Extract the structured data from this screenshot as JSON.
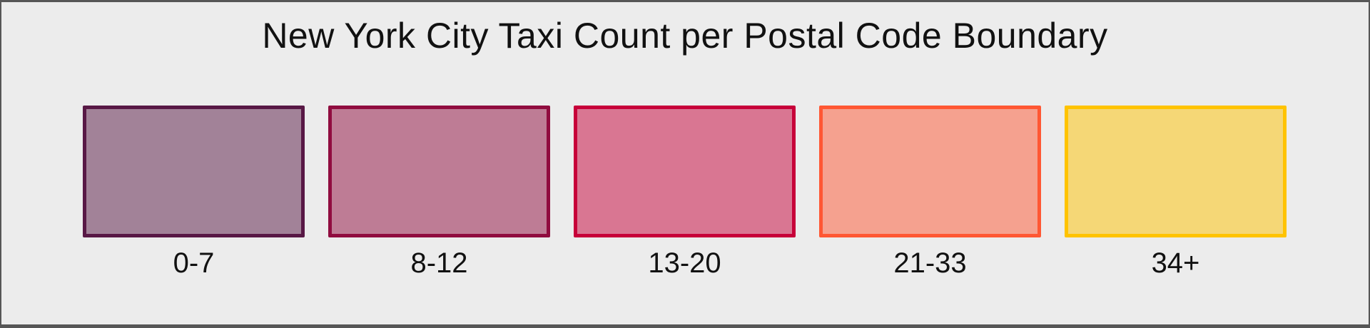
{
  "title": "New York City Taxi Count per Postal Code Boundary",
  "colors": {
    "canvas_background": "#ececec",
    "frame_border": "#565656",
    "text": "#111111"
  },
  "legend": {
    "items": [
      {
        "label": "0-7",
        "border": "#581845",
        "fill": "#a28298"
      },
      {
        "label": "8-12",
        "border": "#900C3F",
        "fill": "#be7c95"
      },
      {
        "label": "13-20",
        "border": "#C70039",
        "fill": "#d97692"
      },
      {
        "label": "21-33",
        "border": "#FF5733",
        "fill": "#f5a18f"
      },
      {
        "label": "34+",
        "border": "#FFC300",
        "fill": "#f5d776"
      }
    ]
  },
  "chart_data": {
    "type": "table",
    "title": "New York City Taxi Count per Postal Code Boundary",
    "categories": [
      "0-7",
      "8-12",
      "13-20",
      "21-33",
      "34+"
    ],
    "series": [
      {
        "name": "bin_border_colors",
        "values": [
          "#581845",
          "#900C3F",
          "#C70039",
          "#FF5733",
          "#FFC300"
        ]
      },
      {
        "name": "bin_fill_colors",
        "values": [
          "#a28298",
          "#be7c95",
          "#d97692",
          "#f5a18f",
          "#f5d776"
        ]
      }
    ],
    "legend_position": "center",
    "grid": false
  }
}
